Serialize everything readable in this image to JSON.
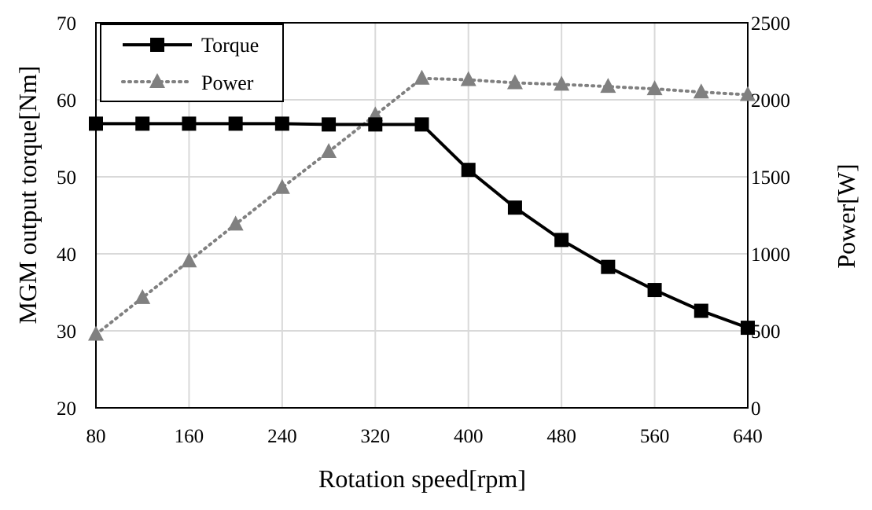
{
  "chart_data": {
    "type": "line",
    "title": "",
    "xlabel": "Rotation speed[rpm]",
    "ylabel_left": "MGM output torque[Nm]",
    "ylabel_right": "Power[W]",
    "xlim": [
      80,
      640
    ],
    "x_ticks": [
      80,
      160,
      240,
      320,
      400,
      480,
      560,
      640
    ],
    "ylim_left": [
      20,
      70
    ],
    "y_ticks_left": [
      20,
      30,
      40,
      50,
      60,
      70
    ],
    "ylim_right": [
      0,
      2500
    ],
    "y_ticks_right": [
      0,
      500,
      1000,
      1500,
      2000,
      2500
    ],
    "grid": true,
    "legend_position": "top-left",
    "x": [
      80,
      120,
      160,
      200,
      240,
      280,
      320,
      360,
      400,
      440,
      480,
      520,
      560,
      600,
      640
    ],
    "series": [
      {
        "name": "Torque",
        "axis": "left",
        "marker": "square",
        "line_style": "solid",
        "color": "#000000",
        "values": [
          56.9,
          56.9,
          56.9,
          56.9,
          56.9,
          56.8,
          56.8,
          56.8,
          50.9,
          46.0,
          41.8,
          38.3,
          35.3,
          32.6,
          30.4
        ]
      },
      {
        "name": "Power",
        "axis": "right",
        "marker": "triangle",
        "line_style": "dotted",
        "color": "#808080",
        "values": [
          477,
          715,
          953,
          1192,
          1430,
          1663,
          1901,
          2139,
          2130,
          2110,
          2100,
          2086,
          2071,
          2050,
          2033
        ]
      }
    ]
  }
}
